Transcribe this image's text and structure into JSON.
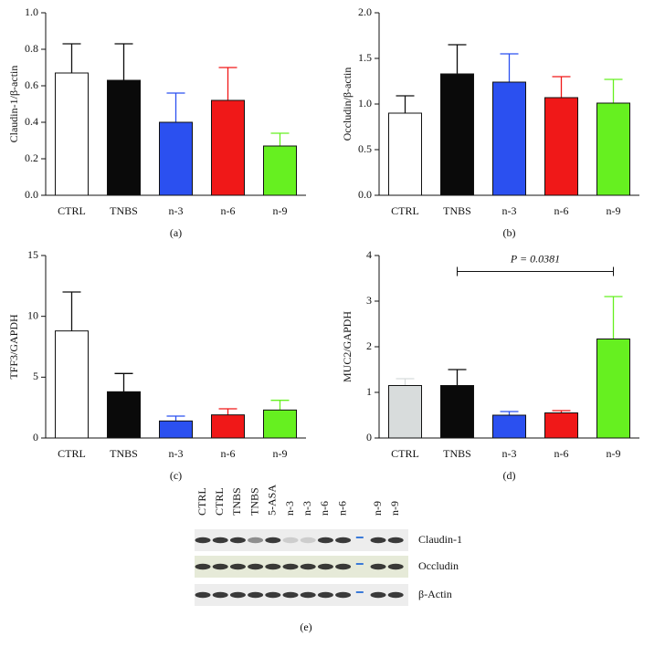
{
  "chart_data": [
    {
      "type": "bar",
      "caption": "(a)",
      "y_label": "Claudin-1/β-actin",
      "categories": [
        "CTRL",
        "TNBS",
        "n-3",
        "n-6",
        "n-9"
      ],
      "values": [
        0.67,
        0.63,
        0.4,
        0.52,
        0.27
      ],
      "errors": [
        0.16,
        0.2,
        0.16,
        0.18,
        0.07
      ],
      "colors": [
        "#ffffff",
        "#0a0a0a",
        "#2b50f0",
        "#f01818",
        "#66f020"
      ],
      "ylim": [
        0,
        1
      ],
      "yticks": [
        {
          "value": 0,
          "label": "0.0"
        },
        0.2,
        0.4,
        0.6,
        0.8,
        {
          "value": 1,
          "label": "1.0"
        }
      ]
    },
    {
      "type": "bar",
      "caption": "(b)",
      "y_label": "Occludin/β-actin",
      "categories": [
        "CTRL",
        "TNBS",
        "n-3",
        "n-6",
        "n-9"
      ],
      "values": [
        0.9,
        1.33,
        1.24,
        1.07,
        1.01
      ],
      "errors": [
        0.19,
        0.32,
        0.31,
        0.23,
        0.26
      ],
      "colors": [
        "#ffffff",
        "#0a0a0a",
        "#2b50f0",
        "#f01818",
        "#66f020"
      ],
      "ylim": [
        0,
        2
      ],
      "yticks": [
        {
          "value": 0,
          "label": "0.0"
        },
        0.5,
        {
          "value": 1,
          "label": "1.0"
        },
        1.5,
        {
          "value": 2,
          "label": "2.0"
        }
      ]
    },
    {
      "type": "bar",
      "caption": "(c)",
      "y_label": "TFF3/GAPDH",
      "categories": [
        "CTRL",
        "TNBS",
        "n-3",
        "n-6",
        "n-9"
      ],
      "values": [
        8.8,
        3.8,
        1.4,
        1.9,
        2.3
      ],
      "errors": [
        3.2,
        1.5,
        0.4,
        0.5,
        0.8
      ],
      "colors": [
        "#ffffff",
        "#0a0a0a",
        "#2b50f0",
        "#f01818",
        "#66f020"
      ],
      "ylim": [
        0,
        15
      ],
      "yticks": [
        0,
        5,
        10,
        15
      ]
    },
    {
      "type": "bar",
      "caption": "(d)",
      "y_label": "MUC2/GAPDH",
      "categories": [
        "CTRL",
        "TNBS",
        "n-3",
        "n-6",
        "n-9"
      ],
      "values": [
        1.15,
        1.15,
        0.5,
        0.55,
        2.17
      ],
      "errors": [
        0.15,
        0.35,
        0.08,
        0.05,
        0.93
      ],
      "colors": [
        "#d8dcdc",
        "#0a0a0a",
        "#2b50f0",
        "#f01818",
        "#66f020"
      ],
      "ylim": [
        0,
        4
      ],
      "yticks": [
        0,
        1,
        2,
        3,
        4
      ],
      "annotation": {
        "text": "P = 0.0381",
        "between": [
          1,
          4
        ],
        "y": 3.65
      }
    }
  ],
  "blot": {
    "caption": "(e)",
    "lanes": [
      "CTRL",
      "CTRL",
      "TNBS",
      "TNBS",
      "5-ASA",
      "n-3",
      "n-3",
      "n-6",
      "n-6",
      null,
      "n-9",
      "n-9"
    ],
    "rows": [
      "Claudin-1",
      "Occludin",
      "β-Actin"
    ]
  }
}
